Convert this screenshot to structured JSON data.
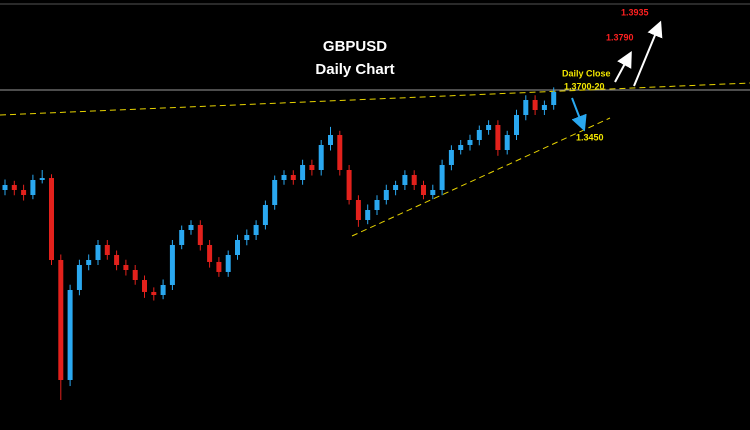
{
  "chart_data": {
    "type": "candlestick",
    "title": "GBPUSD",
    "subtitle": "Daily Chart",
    "annotations": [
      "1.3935",
      "1.3790",
      "Daily Close",
      "1.3700-20",
      "1.3450"
    ],
    "up_color": "#2aa8f0",
    "down_color": "#e3211c",
    "ylim": [
      1.1116,
      1.4384
    ],
    "open": [
      1.294,
      1.2978,
      1.294,
      1.2902,
      1.3016,
      1.3031,
      1.2408,
      1.1496,
      1.218,
      1.237,
      1.2408,
      1.2522,
      1.2446,
      1.237,
      1.2332,
      1.2256,
      1.2165,
      1.2142,
      1.2218,
      1.2522,
      1.2636,
      1.2674,
      1.2522,
      1.2393,
      1.2317,
      1.2446,
      1.256,
      1.2598,
      1.2674,
      1.2826,
      1.3016,
      1.3054,
      1.3016,
      1.313,
      1.3092,
      1.3282,
      1.3358,
      1.3092,
      1.2864,
      1.2712,
      1.2788,
      1.2864,
      1.294,
      1.2978,
      1.3054,
      1.2978,
      1.2902,
      1.294,
      1.313,
      1.3244,
      1.3282,
      1.332,
      1.3396,
      1.3434,
      1.3244,
      1.3358,
      1.351,
      1.3624,
      1.3548,
      1.3586
    ],
    "high": [
      1.302,
      1.301,
      1.298,
      1.3056,
      1.3092,
      1.306,
      1.245,
      1.222,
      1.241,
      1.245,
      1.256,
      1.256,
      1.248,
      1.241,
      1.237,
      1.229,
      1.22,
      1.226,
      1.256,
      1.267,
      1.271,
      1.271,
      1.256,
      1.243,
      1.248,
      1.26,
      1.264,
      1.271,
      1.286,
      1.305,
      1.309,
      1.309,
      1.317,
      1.317,
      1.332,
      1.342,
      1.339,
      1.313,
      1.29,
      1.283,
      1.29,
      1.298,
      1.301,
      1.309,
      1.309,
      1.301,
      1.298,
      1.317,
      1.328,
      1.332,
      1.336,
      1.343,
      1.347,
      1.347,
      1.339,
      1.355,
      1.366,
      1.366,
      1.362,
      1.372
    ],
    "low": [
      1.29,
      1.29,
      1.286,
      1.287,
      1.299,
      1.237,
      1.1344,
      1.145,
      1.214,
      1.233,
      1.237,
      1.241,
      1.233,
      1.229,
      1.222,
      1.212,
      1.21,
      1.211,
      1.218,
      1.249,
      1.26,
      1.248,
      1.235,
      1.228,
      1.228,
      1.241,
      1.252,
      1.256,
      1.264,
      1.279,
      1.298,
      1.298,
      1.298,
      1.305,
      1.305,
      1.324,
      1.305,
      1.283,
      1.266,
      1.268,
      1.275,
      1.283,
      1.29,
      1.294,
      1.294,
      1.287,
      1.287,
      1.29,
      1.309,
      1.321,
      1.324,
      1.328,
      1.336,
      1.32,
      1.321,
      1.332,
      1.347,
      1.351,
      1.351,
      1.355
    ],
    "close": [
      1.2978,
      1.294,
      1.2902,
      1.3016,
      1.3031,
      1.2408,
      1.1496,
      1.218,
      1.237,
      1.2408,
      1.2522,
      1.2446,
      1.237,
      1.2332,
      1.2256,
      1.2165,
      1.2142,
      1.2218,
      1.2522,
      1.2636,
      1.2674,
      1.2522,
      1.2393,
      1.2317,
      1.2446,
      1.256,
      1.2598,
      1.2674,
      1.2826,
      1.3016,
      1.3054,
      1.3016,
      1.313,
      1.3092,
      1.3282,
      1.3358,
      1.3092,
      1.2864,
      1.2712,
      1.2788,
      1.2864,
      1.294,
      1.2978,
      1.3054,
      1.2978,
      1.2902,
      1.294,
      1.313,
      1.3244,
      1.3282,
      1.332,
      1.3396,
      1.3434,
      1.3244,
      1.3358,
      1.351,
      1.3624,
      1.3548,
      1.3586,
      1.3685
    ]
  }
}
